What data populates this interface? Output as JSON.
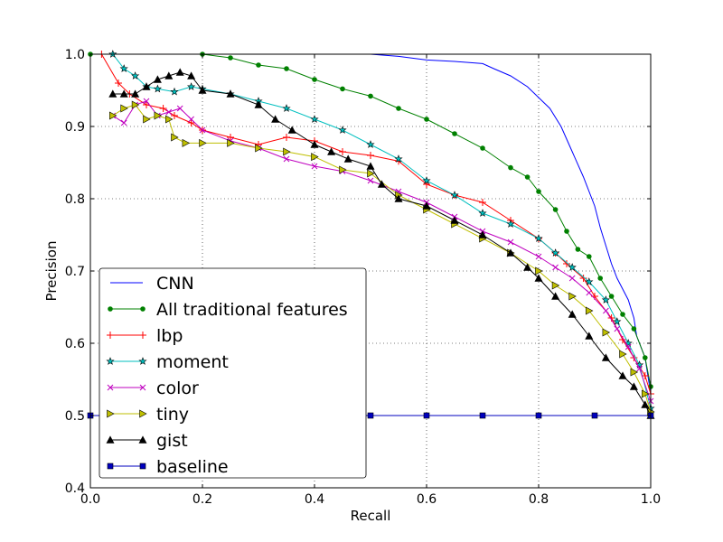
{
  "chart_data": {
    "type": "line",
    "title": "",
    "xlabel": "Recall",
    "ylabel": "Precision",
    "xlim": [
      0.0,
      1.0
    ],
    "ylim": [
      0.4,
      1.0
    ],
    "xticks": [
      "0.0",
      "0.2",
      "0.4",
      "0.6",
      "0.8",
      "1.0"
    ],
    "yticks": [
      "0.4",
      "0.5",
      "0.6",
      "0.7",
      "0.8",
      "0.9",
      "1.0"
    ],
    "grid": true,
    "legend_position": "lower-left",
    "series": [
      {
        "name": "CNN",
        "color": "#0000ff",
        "marker": "none",
        "points": [
          [
            0.0,
            1.0
          ],
          [
            0.5,
            1.0
          ],
          [
            0.55,
            0.997
          ],
          [
            0.6,
            0.992
          ],
          [
            0.65,
            0.99
          ],
          [
            0.7,
            0.987
          ],
          [
            0.72,
            0.98
          ],
          [
            0.75,
            0.97
          ],
          [
            0.78,
            0.955
          ],
          [
            0.8,
            0.94
          ],
          [
            0.82,
            0.925
          ],
          [
            0.84,
            0.9
          ],
          [
            0.86,
            0.865
          ],
          [
            0.88,
            0.83
          ],
          [
            0.9,
            0.79
          ],
          [
            0.91,
            0.76
          ],
          [
            0.92,
            0.735
          ],
          [
            0.93,
            0.71
          ],
          [
            0.94,
            0.69
          ],
          [
            0.95,
            0.675
          ],
          [
            0.96,
            0.66
          ],
          [
            0.97,
            0.635
          ],
          [
            0.975,
            0.61
          ],
          [
            0.98,
            0.6
          ],
          [
            0.99,
            0.58
          ],
          [
            1.0,
            0.53
          ]
        ]
      },
      {
        "name": "All traditional features",
        "color": "#008000",
        "marker": "dot",
        "points": [
          [
            0.0,
            1.0
          ],
          [
            0.2,
            1.0
          ],
          [
            0.25,
            0.995
          ],
          [
            0.3,
            0.985
          ],
          [
            0.35,
            0.98
          ],
          [
            0.4,
            0.965
          ],
          [
            0.45,
            0.952
          ],
          [
            0.5,
            0.942
          ],
          [
            0.55,
            0.925
          ],
          [
            0.6,
            0.91
          ],
          [
            0.65,
            0.89
          ],
          [
            0.7,
            0.87
          ],
          [
            0.75,
            0.843
          ],
          [
            0.78,
            0.83
          ],
          [
            0.8,
            0.81
          ],
          [
            0.83,
            0.785
          ],
          [
            0.85,
            0.755
          ],
          [
            0.87,
            0.73
          ],
          [
            0.89,
            0.72
          ],
          [
            0.91,
            0.69
          ],
          [
            0.93,
            0.665
          ],
          [
            0.95,
            0.64
          ],
          [
            0.97,
            0.62
          ],
          [
            0.99,
            0.58
          ],
          [
            1.0,
            0.54
          ]
        ]
      },
      {
        "name": "lbp",
        "color": "#ff0000",
        "marker": "plus",
        "points": [
          [
            0.02,
            1.0
          ],
          [
            0.05,
            0.96
          ],
          [
            0.07,
            0.945
          ],
          [
            0.1,
            0.93
          ],
          [
            0.13,
            0.925
          ],
          [
            0.15,
            0.915
          ],
          [
            0.18,
            0.905
          ],
          [
            0.2,
            0.895
          ],
          [
            0.25,
            0.885
          ],
          [
            0.3,
            0.875
          ],
          [
            0.35,
            0.885
          ],
          [
            0.4,
            0.88
          ],
          [
            0.45,
            0.865
          ],
          [
            0.5,
            0.86
          ],
          [
            0.55,
            0.852
          ],
          [
            0.6,
            0.82
          ],
          [
            0.65,
            0.805
          ],
          [
            0.7,
            0.795
          ],
          [
            0.75,
            0.77
          ],
          [
            0.8,
            0.745
          ],
          [
            0.83,
            0.725
          ],
          [
            0.85,
            0.71
          ],
          [
            0.88,
            0.69
          ],
          [
            0.9,
            0.665
          ],
          [
            0.93,
            0.635
          ],
          [
            0.95,
            0.605
          ],
          [
            0.97,
            0.58
          ],
          [
            0.99,
            0.555
          ],
          [
            1.0,
            0.53
          ]
        ]
      },
      {
        "name": "moment",
        "color": "#00bfbf",
        "marker": "star",
        "points": [
          [
            0.04,
            1.0
          ],
          [
            0.06,
            0.98
          ],
          [
            0.08,
            0.97
          ],
          [
            0.1,
            0.955
          ],
          [
            0.12,
            0.952
          ],
          [
            0.15,
            0.948
          ],
          [
            0.18,
            0.955
          ],
          [
            0.2,
            0.952
          ],
          [
            0.25,
            0.945
          ],
          [
            0.3,
            0.935
          ],
          [
            0.35,
            0.925
          ],
          [
            0.4,
            0.91
          ],
          [
            0.45,
            0.895
          ],
          [
            0.5,
            0.875
          ],
          [
            0.55,
            0.855
          ],
          [
            0.6,
            0.825
          ],
          [
            0.65,
            0.805
          ],
          [
            0.7,
            0.78
          ],
          [
            0.75,
            0.765
          ],
          [
            0.8,
            0.745
          ],
          [
            0.83,
            0.725
          ],
          [
            0.86,
            0.705
          ],
          [
            0.89,
            0.685
          ],
          [
            0.92,
            0.66
          ],
          [
            0.94,
            0.63
          ],
          [
            0.96,
            0.6
          ],
          [
            0.98,
            0.57
          ],
          [
            1.0,
            0.51
          ]
        ]
      },
      {
        "name": "color",
        "color": "#bf00bf",
        "marker": "x",
        "points": [
          [
            0.04,
            0.915
          ],
          [
            0.06,
            0.905
          ],
          [
            0.08,
            0.93
          ],
          [
            0.1,
            0.935
          ],
          [
            0.12,
            0.915
          ],
          [
            0.14,
            0.92
          ],
          [
            0.16,
            0.925
          ],
          [
            0.18,
            0.91
          ],
          [
            0.2,
            0.895
          ],
          [
            0.25,
            0.88
          ],
          [
            0.3,
            0.87
          ],
          [
            0.35,
            0.855
          ],
          [
            0.4,
            0.845
          ],
          [
            0.45,
            0.838
          ],
          [
            0.5,
            0.825
          ],
          [
            0.55,
            0.81
          ],
          [
            0.6,
            0.795
          ],
          [
            0.65,
            0.775
          ],
          [
            0.7,
            0.755
          ],
          [
            0.75,
            0.74
          ],
          [
            0.8,
            0.72
          ],
          [
            0.83,
            0.705
          ],
          [
            0.86,
            0.69
          ],
          [
            0.89,
            0.67
          ],
          [
            0.92,
            0.645
          ],
          [
            0.94,
            0.62
          ],
          [
            0.96,
            0.595
          ],
          [
            0.98,
            0.565
          ],
          [
            1.0,
            0.52
          ]
        ]
      },
      {
        "name": "tiny",
        "color": "#bfbf00",
        "marker": "triangle-right",
        "points": [
          [
            0.04,
            0.915
          ],
          [
            0.06,
            0.925
          ],
          [
            0.08,
            0.93
          ],
          [
            0.1,
            0.91
          ],
          [
            0.12,
            0.915
          ],
          [
            0.14,
            0.91
          ],
          [
            0.15,
            0.885
          ],
          [
            0.17,
            0.877
          ],
          [
            0.2,
            0.877
          ],
          [
            0.25,
            0.877
          ],
          [
            0.3,
            0.87
          ],
          [
            0.35,
            0.865
          ],
          [
            0.4,
            0.858
          ],
          [
            0.45,
            0.84
          ],
          [
            0.5,
            0.835
          ],
          [
            0.55,
            0.805
          ],
          [
            0.6,
            0.785
          ],
          [
            0.65,
            0.765
          ],
          [
            0.7,
            0.745
          ],
          [
            0.75,
            0.725
          ],
          [
            0.8,
            0.7
          ],
          [
            0.83,
            0.68
          ],
          [
            0.86,
            0.665
          ],
          [
            0.89,
            0.645
          ],
          [
            0.92,
            0.615
          ],
          [
            0.95,
            0.585
          ],
          [
            0.97,
            0.56
          ],
          [
            0.99,
            0.53
          ],
          [
            1.0,
            0.505
          ]
        ]
      },
      {
        "name": "gist",
        "color": "#000000",
        "marker": "triangle-up",
        "points": [
          [
            0.04,
            0.945
          ],
          [
            0.06,
            0.945
          ],
          [
            0.08,
            0.945
          ],
          [
            0.1,
            0.955
          ],
          [
            0.12,
            0.965
          ],
          [
            0.14,
            0.97
          ],
          [
            0.16,
            0.975
          ],
          [
            0.18,
            0.97
          ],
          [
            0.2,
            0.95
          ],
          [
            0.25,
            0.945
          ],
          [
            0.3,
            0.93
          ],
          [
            0.33,
            0.91
          ],
          [
            0.36,
            0.895
          ],
          [
            0.4,
            0.875
          ],
          [
            0.43,
            0.865
          ],
          [
            0.46,
            0.855
          ],
          [
            0.5,
            0.845
          ],
          [
            0.52,
            0.82
          ],
          [
            0.55,
            0.8
          ],
          [
            0.6,
            0.79
          ],
          [
            0.65,
            0.77
          ],
          [
            0.7,
            0.75
          ],
          [
            0.75,
            0.725
          ],
          [
            0.78,
            0.705
          ],
          [
            0.8,
            0.69
          ],
          [
            0.83,
            0.665
          ],
          [
            0.86,
            0.64
          ],
          [
            0.89,
            0.61
          ],
          [
            0.92,
            0.58
          ],
          [
            0.95,
            0.555
          ],
          [
            0.97,
            0.54
          ],
          [
            0.99,
            0.515
          ],
          [
            1.0,
            0.5
          ]
        ]
      },
      {
        "name": "baseline",
        "color": "#0000bf",
        "marker": "square",
        "points": [
          [
            0.0,
            0.5
          ],
          [
            0.1,
            0.5
          ],
          [
            0.2,
            0.5
          ],
          [
            0.3,
            0.5
          ],
          [
            0.4,
            0.5
          ],
          [
            0.5,
            0.5
          ],
          [
            0.6,
            0.5
          ],
          [
            0.7,
            0.5
          ],
          [
            0.8,
            0.5
          ],
          [
            0.9,
            0.5
          ],
          [
            1.0,
            0.5
          ]
        ]
      }
    ]
  }
}
